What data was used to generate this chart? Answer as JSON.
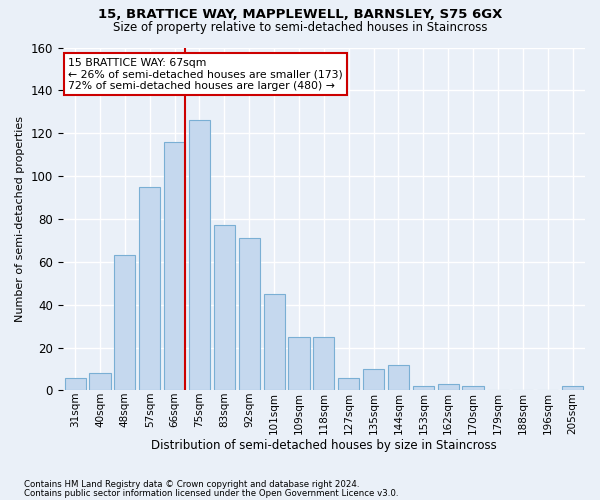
{
  "title1": "15, BRATTICE WAY, MAPPLEWELL, BARNSLEY, S75 6GX",
  "title2": "Size of property relative to semi-detached houses in Staincross",
  "xlabel": "Distribution of semi-detached houses by size in Staincross",
  "ylabel": "Number of semi-detached properties",
  "categories": [
    "31sqm",
    "40sqm",
    "48sqm",
    "57sqm",
    "66sqm",
    "75sqm",
    "83sqm",
    "92sqm",
    "101sqm",
    "109sqm",
    "118sqm",
    "127sqm",
    "135sqm",
    "144sqm",
    "153sqm",
    "162sqm",
    "170sqm",
    "179sqm",
    "188sqm",
    "196sqm",
    "205sqm"
  ],
  "values": [
    6,
    8,
    63,
    95,
    116,
    126,
    77,
    71,
    45,
    25,
    25,
    6,
    10,
    12,
    2,
    3,
    2,
    0,
    0,
    0,
    2
  ],
  "bar_color": "#c5d8ee",
  "bar_edge_color": "#7aafd4",
  "annotation_text": "15 BRATTICE WAY: 67sqm\n← 26% of semi-detached houses are smaller (173)\n72% of semi-detached houses are larger (480) →",
  "vline_color": "#cc0000",
  "footer1": "Contains HM Land Registry data © Crown copyright and database right 2024.",
  "footer2": "Contains public sector information licensed under the Open Government Licence v3.0.",
  "ylim": [
    0,
    160
  ],
  "background_color": "#eaf0f8",
  "grid_color": "#ffffff",
  "vline_index": 4.43
}
